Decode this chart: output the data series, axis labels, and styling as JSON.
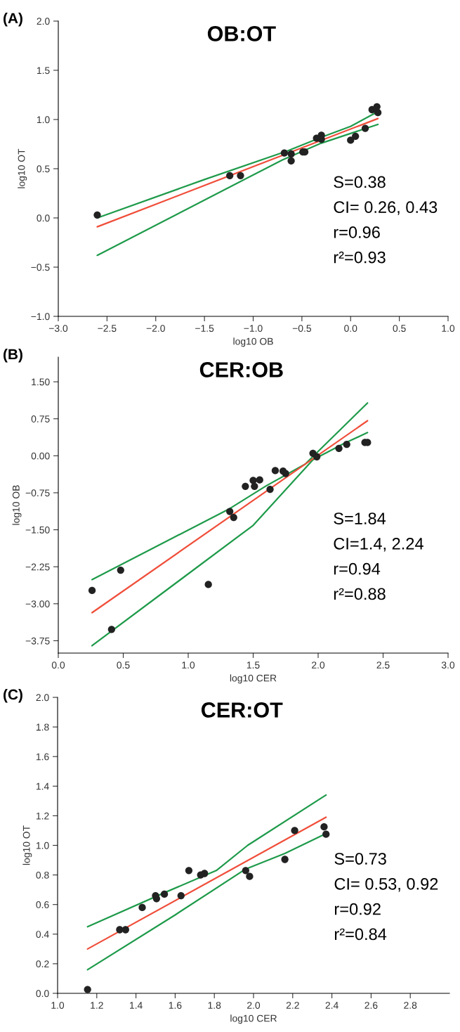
{
  "chart_data": [
    {
      "type": "scatter",
      "title": "OB:OT",
      "xlabel": "log10 OB",
      "ylabel": "log10 OT",
      "xlim": [
        -3.0,
        1.0
      ],
      "ylim": [
        -1.0,
        2.0
      ],
      "xticks": [
        {
          "value": -3.0,
          "label": "−3.0"
        },
        {
          "value": -2.5,
          "label": "−2.5"
        },
        {
          "value": -2.0,
          "label": "−2.0"
        },
        {
          "value": -1.5,
          "label": "−1.5"
        },
        {
          "value": -1.0,
          "label": "−1.0"
        },
        {
          "value": -0.5,
          "label": "−0.5"
        },
        {
          "value": 0.0,
          "label": "0.0"
        },
        {
          "value": 0.5,
          "label": "0.5"
        },
        {
          "value": 1.0,
          "label": "1.0"
        }
      ],
      "yticks": [
        {
          "value": -1.0,
          "label": "−1.0"
        },
        {
          "value": -0.5,
          "label": "−0.5"
        },
        {
          "value": 0.0,
          "label": "0.0"
        },
        {
          "value": 0.5,
          "label": "0.5"
        },
        {
          "value": 1.0,
          "label": "1.0"
        },
        {
          "value": 1.5,
          "label": "1.5"
        },
        {
          "value": 2.0,
          "label": "2.0"
        }
      ],
      "annotations": [
        "(A)",
        "S=0.38",
        "CI= 0.26, 0.43",
        "r=0.96",
        "r²=0.93"
      ],
      "series": [
        {
          "type": "line",
          "color": "#1e9a4a",
          "marker": "none",
          "x": [
            -2.6,
            -1.5,
            -0.65,
            -0.3,
            0.0,
            0.28
          ],
          "values": [
            0.0,
            0.39,
            0.68,
            0.82,
            0.93,
            1.08
          ]
        },
        {
          "type": "line",
          "color": "#1e9a4a",
          "marker": "none",
          "x": [
            -2.6,
            -0.7,
            -0.3,
            0.28
          ],
          "values": [
            -0.38,
            0.59,
            0.76,
            0.95
          ]
        },
        {
          "type": "line",
          "color": "#f04e3a",
          "marker": "none",
          "x": [
            -2.6,
            0.28
          ],
          "values": [
            -0.09,
            1.01
          ]
        },
        {
          "color": "#222222",
          "marker": "circle",
          "x": [
            -2.6,
            -1.24,
            -1.13,
            -0.68,
            -0.61,
            -0.61,
            -0.49,
            -0.47,
            -0.35,
            -0.3,
            -0.3,
            0.0,
            0.05,
            0.15,
            0.22,
            0.27,
            0.28
          ],
          "values": [
            0.03,
            0.43,
            0.43,
            0.66,
            0.65,
            0.58,
            0.67,
            0.67,
            0.81,
            0.84,
            0.8,
            0.79,
            0.83,
            0.91,
            1.1,
            1.13,
            1.07
          ]
        }
      ]
    },
    {
      "type": "scatter",
      "title": "CER:OB",
      "xlabel": "log10 CER",
      "ylabel": "log10 OB",
      "xlim": [
        0.0,
        3.0
      ],
      "ylim": [
        -4.0,
        2.0
      ],
      "xticks": [
        {
          "value": 0.0,
          "label": "0.0"
        },
        {
          "value": 0.5,
          "label": "0.5"
        },
        {
          "value": 1.0,
          "label": "1.0"
        },
        {
          "value": 1.5,
          "label": "1.5"
        },
        {
          "value": 2.0,
          "label": "2.0"
        },
        {
          "value": 2.5,
          "label": "2.5"
        },
        {
          "value": 3.0,
          "label": "3.0"
        }
      ],
      "yticks": [
        {
          "value": -3.75,
          "label": "−3.75"
        },
        {
          "value": -3.0,
          "label": "−3.00"
        },
        {
          "value": -2.25,
          "label": "−2.25"
        },
        {
          "value": -1.5,
          "label": "−1.50"
        },
        {
          "value": -0.75,
          "label": "−0.75"
        },
        {
          "value": 0.0,
          "label": "0.00"
        },
        {
          "value": 0.75,
          "label": "0.75"
        },
        {
          "value": 1.5,
          "label": "1.50"
        }
      ],
      "annotations": [
        "(B)",
        "S=1.84",
        "CI=1.4, 2.24",
        "r=0.94",
        "r²=0.88"
      ],
      "series": [
        {
          "type": "line",
          "color": "#1e9a4a",
          "marker": "none",
          "x": [
            0.26,
            1.32,
            1.6,
            1.9,
            2.38
          ],
          "values": [
            -2.51,
            -1.07,
            -0.61,
            -0.17,
            1.07
          ]
        },
        {
          "type": "line",
          "color": "#1e9a4a",
          "marker": "none",
          "x": [
            0.26,
            1.5,
            1.96,
            2.2,
            2.38
          ],
          "values": [
            -3.85,
            -1.41,
            -0.08,
            0.25,
            0.47
          ]
        },
        {
          "type": "line",
          "color": "#f04e3a",
          "marker": "none",
          "x": [
            0.26,
            2.38
          ],
          "values": [
            -3.18,
            0.71
          ]
        },
        {
          "color": "#222222",
          "marker": "circle",
          "x": [
            0.26,
            0.48,
            0.41,
            1.155,
            1.32,
            1.35,
            1.44,
            1.5,
            1.51,
            1.55,
            1.63,
            1.67,
            1.73,
            1.75,
            1.96,
            1.99,
            2.16,
            2.22,
            2.36,
            2.38
          ],
          "values": [
            -2.73,
            -2.32,
            -3.52,
            -2.61,
            -1.13,
            -1.25,
            -0.62,
            -0.5,
            -0.62,
            -0.49,
            -0.68,
            -0.3,
            -0.31,
            -0.36,
            0.05,
            -0.02,
            0.15,
            0.23,
            0.27,
            0.27
          ]
        }
      ]
    },
    {
      "type": "scatter",
      "title": "CER:OT",
      "xlabel": "log10 CER",
      "ylabel": "log10 OT",
      "xlim": [
        1.0,
        3.0
      ],
      "ylim": [
        0.0,
        2.0
      ],
      "xticks": [
        {
          "value": 1.0,
          "label": "1.0"
        },
        1.2,
        1.4,
        1.6,
        1.8,
        {
          "value": 2.0,
          "label": "2.0"
        },
        2.2,
        2.4,
        2.6,
        2.8
      ],
      "yticks": [
        {
          "value": 0.0,
          "label": "0.0"
        },
        0.2,
        0.4,
        0.6,
        0.8,
        {
          "value": 1.0,
          "label": "1.0"
        },
        1.2,
        1.4,
        1.6,
        1.8,
        {
          "value": 2.0,
          "label": "2.0"
        }
      ],
      "annotations": [
        "(C)",
        "S=0.73",
        "CI= 0.53, 0.92",
        "r=0.92",
        "r²=0.84"
      ],
      "series": [
        {
          "type": "line",
          "color": "#1e9a4a",
          "marker": "none",
          "x": [
            1.153,
            1.545,
            1.81,
            1.97,
            2.37
          ],
          "values": [
            0.45,
            0.68,
            0.83,
            1.0,
            1.34
          ]
        },
        {
          "type": "line",
          "color": "#1e9a4a",
          "marker": "none",
          "x": [
            1.153,
            1.6,
            1.96,
            2.16,
            2.37
          ],
          "values": [
            0.16,
            0.53,
            0.84,
            0.945,
            1.08
          ]
        },
        {
          "type": "line",
          "color": "#f04e3a",
          "marker": "none",
          "x": [
            1.153,
            2.37
          ],
          "values": [
            0.3,
            1.19
          ]
        },
        {
          "color": "#222222",
          "marker": "circle",
          "x": [
            1.153,
            1.317,
            1.347,
            1.432,
            1.5,
            1.505,
            1.545,
            1.63,
            1.67,
            1.73,
            1.75,
            1.96,
            1.98,
            2.16,
            2.21,
            2.36,
            2.37
          ],
          "values": [
            0.026,
            0.43,
            0.43,
            0.58,
            0.66,
            0.64,
            0.67,
            0.66,
            0.83,
            0.8,
            0.81,
            0.83,
            0.79,
            0.905,
            1.1,
            1.125,
            1.075
          ]
        }
      ]
    }
  ]
}
